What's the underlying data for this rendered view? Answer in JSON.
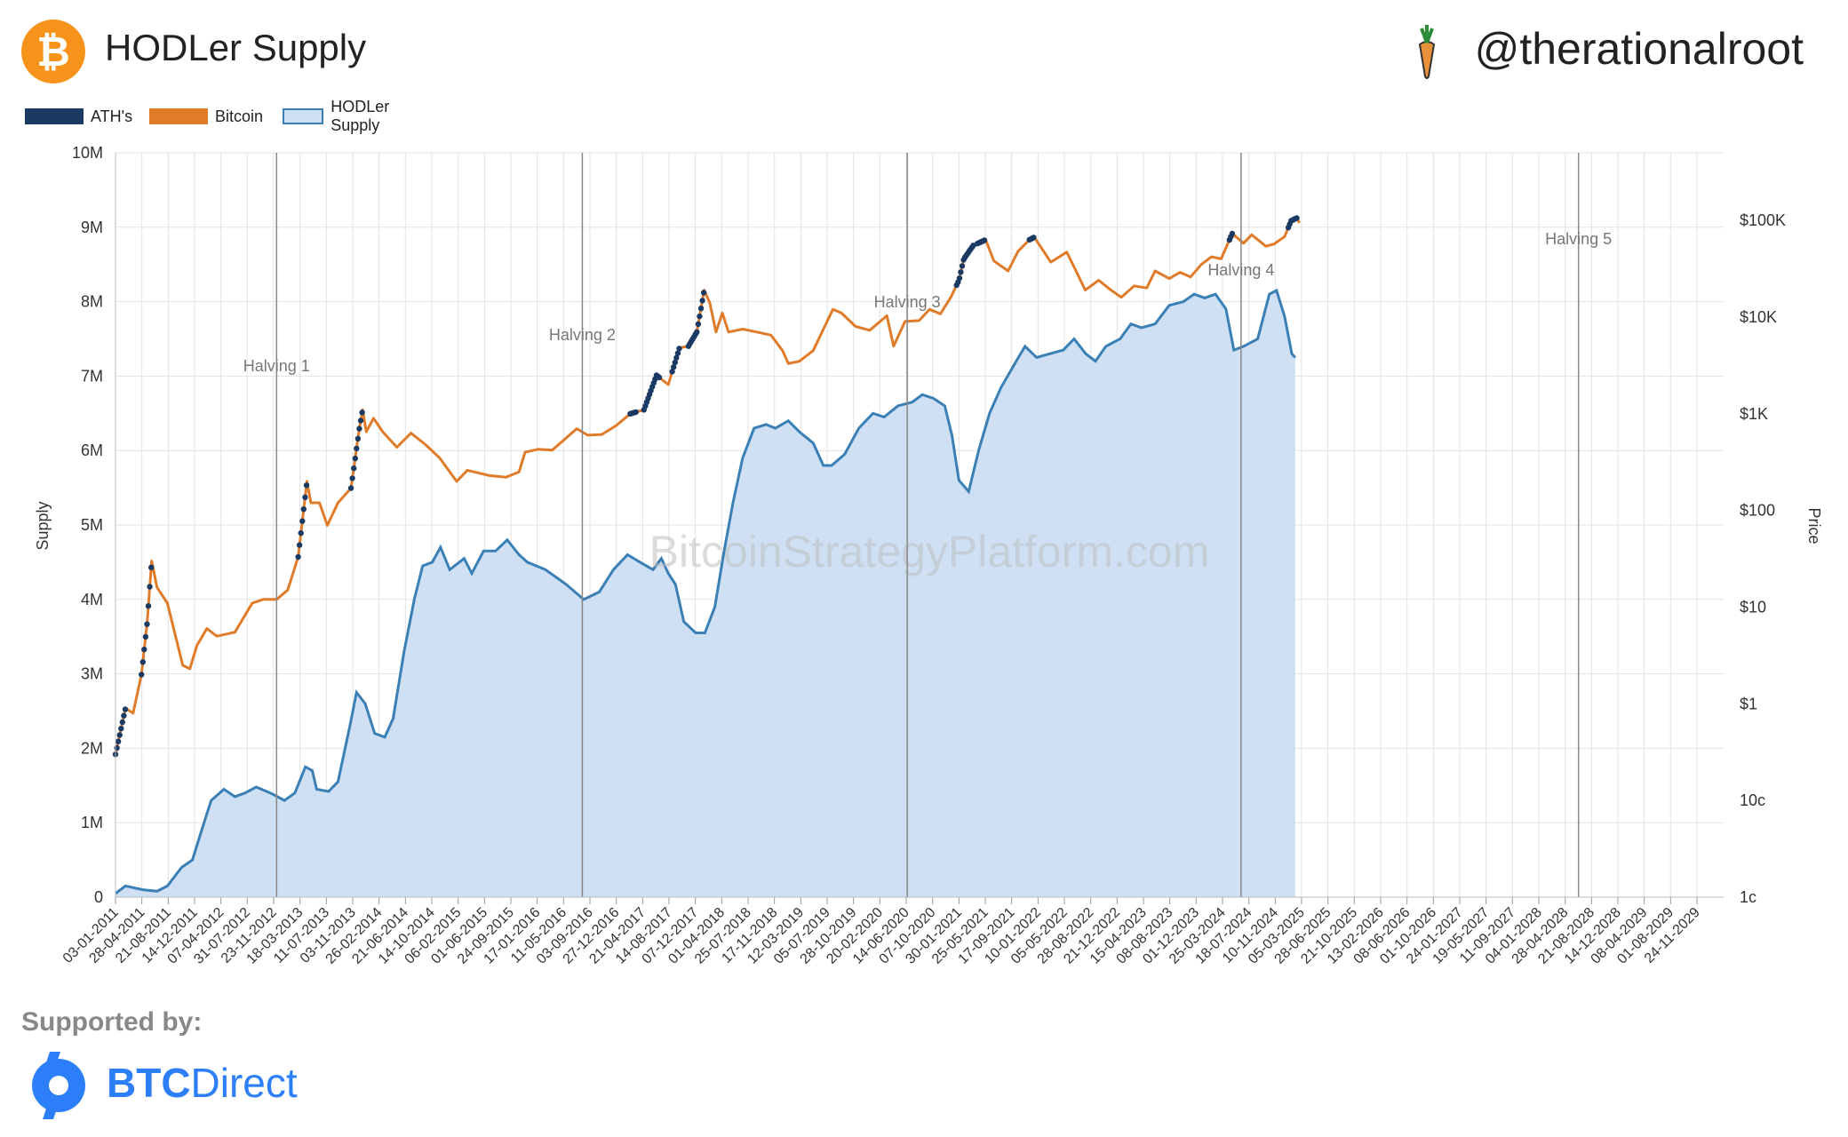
{
  "header": {
    "title": "HODLer Supply",
    "handle": "@therationalroot",
    "logo_icon": "bitcoin-icon",
    "handle_icon": "carrot-icon"
  },
  "footer": {
    "supported_label": "Supported by:",
    "sponsor_brand": "BTC",
    "sponsor_rest": "Direct",
    "sponsor_icon": "btcdirect-icon"
  },
  "colors": {
    "ath": "#1b3a63",
    "bitcoin": "#e07b2a",
    "hodler_line": "#3a7fb5",
    "hodler_fill": "#cfe0f4",
    "grid": "#e3e3e3",
    "halving_line": "#888888"
  },
  "chart_data": {
    "type": "area",
    "title": "HODLer Supply",
    "watermark": "BitcoinStrategyPlatform.com",
    "ylabel": "Supply",
    "y2label": "Price",
    "ylim": [
      0,
      10000000
    ],
    "y2_scale": "log",
    "y2lim": [
      0.01,
      500000
    ],
    "xlim": [
      "2011-01-03",
      "2030-01-01"
    ],
    "grid": true,
    "legend": [
      "ATH's",
      "Bitcoin",
      "HODLer Supply"
    ],
    "legend_position": "top-left",
    "y_ticks": [
      "0",
      "1M",
      "2M",
      "3M",
      "4M",
      "5M",
      "6M",
      "7M",
      "8M",
      "9M",
      "10M"
    ],
    "y2_ticks": [
      {
        "label": "1c",
        "value": 0.01
      },
      {
        "label": "10c",
        "value": 0.1
      },
      {
        "label": "$1",
        "value": 1
      },
      {
        "label": "$10",
        "value": 10
      },
      {
        "label": "$100",
        "value": 100
      },
      {
        "label": "$1K",
        "value": 1000
      },
      {
        "label": "$10K",
        "value": 10000
      },
      {
        "label": "$100K",
        "value": 100000
      }
    ],
    "x_ticks": [
      "03-01-2011",
      "28-04-2011",
      "21-08-2011",
      "14-12-2011",
      "07-04-2012",
      "31-07-2012",
      "23-11-2012",
      "18-03-2013",
      "11-07-2013",
      "03-11-2013",
      "26-02-2014",
      "21-06-2014",
      "14-10-2014",
      "06-02-2015",
      "01-06-2015",
      "24-09-2015",
      "17-01-2016",
      "11-05-2016",
      "03-09-2016",
      "27-12-2016",
      "21-04-2017",
      "14-08-2017",
      "07-12-2017",
      "01-04-2018",
      "25-07-2018",
      "17-11-2018",
      "12-03-2019",
      "05-07-2019",
      "28-10-2019",
      "20-02-2020",
      "14-06-2020",
      "07-10-2020",
      "30-01-2021",
      "25-05-2021",
      "17-09-2021",
      "10-01-2022",
      "05-05-2022",
      "28-08-2022",
      "21-12-2022",
      "15-04-2023",
      "08-08-2023",
      "01-12-2023",
      "25-03-2024",
      "18-07-2024",
      "10-11-2024",
      "05-03-2025",
      "28-06-2025",
      "21-10-2025",
      "13-02-2026",
      "08-06-2026",
      "01-10-2026",
      "24-01-2027",
      "19-05-2027",
      "11-09-2027",
      "04-01-2028",
      "28-04-2028",
      "21-08-2028",
      "14-12-2028",
      "08-04-2029",
      "01-08-2029",
      "24-11-2029"
    ],
    "halvings": [
      {
        "label": "Halving 1",
        "date": "2012-11-28"
      },
      {
        "label": "Halving 2",
        "date": "2016-07-09"
      },
      {
        "label": "Halving 3",
        "date": "2020-05-11"
      },
      {
        "label": "Halving 4",
        "date": "2024-04-20"
      },
      {
        "label": "Halving 5",
        "date": "2028-04-15"
      }
    ],
    "series": [
      {
        "name": "HODLer Supply",
        "kind": "area",
        "axis": "left",
        "points": [
          [
            "2011-01-03",
            50000
          ],
          [
            "2011-02-15",
            150000
          ],
          [
            "2011-05-01",
            100000
          ],
          [
            "2011-07-01",
            80000
          ],
          [
            "2011-08-15",
            150000
          ],
          [
            "2011-10-15",
            400000
          ],
          [
            "2011-12-01",
            500000
          ],
          [
            "2012-01-10",
            900000
          ],
          [
            "2012-02-20",
            1300000
          ],
          [
            "2012-04-15",
            1450000
          ],
          [
            "2012-06-01",
            1350000
          ],
          [
            "2012-07-15",
            1400000
          ],
          [
            "2012-09-01",
            1480000
          ],
          [
            "2012-11-01",
            1400000
          ],
          [
            "2013-01-01",
            1300000
          ],
          [
            "2013-02-15",
            1400000
          ],
          [
            "2013-04-01",
            1750000
          ],
          [
            "2013-05-01",
            1700000
          ],
          [
            "2013-05-20",
            1450000
          ],
          [
            "2013-07-10",
            1420000
          ],
          [
            "2013-08-20",
            1550000
          ],
          [
            "2013-10-10",
            2300000
          ],
          [
            "2013-11-08",
            2750000
          ],
          [
            "2013-12-15",
            2600000
          ],
          [
            "2014-01-25",
            2200000
          ],
          [
            "2014-03-10",
            2150000
          ],
          [
            "2014-04-15",
            2400000
          ],
          [
            "2014-06-01",
            3300000
          ],
          [
            "2014-07-15",
            4000000
          ],
          [
            "2014-08-20",
            4450000
          ],
          [
            "2014-10-01",
            4500000
          ],
          [
            "2014-11-05",
            4700000
          ],
          [
            "2014-12-15",
            4400000
          ],
          [
            "2015-02-15",
            4550000
          ],
          [
            "2015-03-20",
            4350000
          ],
          [
            "2015-05-10",
            4650000
          ],
          [
            "2015-07-01",
            4650000
          ],
          [
            "2015-08-20",
            4800000
          ],
          [
            "2015-10-10",
            4600000
          ],
          [
            "2015-11-15",
            4500000
          ],
          [
            "2016-02-01",
            4400000
          ],
          [
            "2016-05-01",
            4200000
          ],
          [
            "2016-07-15",
            4000000
          ],
          [
            "2016-09-20",
            4100000
          ],
          [
            "2016-11-20",
            4400000
          ],
          [
            "2017-01-20",
            4600000
          ],
          [
            "2017-03-15",
            4500000
          ],
          [
            "2017-05-10",
            4400000
          ],
          [
            "2017-06-15",
            4550000
          ],
          [
            "2017-07-15",
            4350000
          ],
          [
            "2017-08-15",
            4200000
          ],
          [
            "2017-09-20",
            3700000
          ],
          [
            "2017-11-10",
            3550000
          ],
          [
            "2017-12-20",
            3550000
          ],
          [
            "2018-02-01",
            3900000
          ],
          [
            "2018-03-10",
            4600000
          ],
          [
            "2018-04-20",
            5300000
          ],
          [
            "2018-06-01",
            5900000
          ],
          [
            "2018-07-20",
            6300000
          ],
          [
            "2018-09-10",
            6350000
          ],
          [
            "2018-10-20",
            6300000
          ],
          [
            "2018-12-15",
            6400000
          ],
          [
            "2019-02-01",
            6250000
          ],
          [
            "2019-04-01",
            6100000
          ],
          [
            "2019-05-15",
            5800000
          ],
          [
            "2019-06-20",
            5800000
          ],
          [
            "2019-08-15",
            5950000
          ],
          [
            "2019-10-15",
            6300000
          ],
          [
            "2019-12-15",
            6500000
          ],
          [
            "2020-02-01",
            6450000
          ],
          [
            "2020-04-01",
            6600000
          ],
          [
            "2020-06-01",
            6650000
          ],
          [
            "2020-07-15",
            6750000
          ],
          [
            "2020-09-01",
            6700000
          ],
          [
            "2020-10-20",
            6600000
          ],
          [
            "2020-11-20",
            6200000
          ],
          [
            "2020-12-20",
            5600000
          ],
          [
            "2021-01-31",
            5450000
          ],
          [
            "2021-03-15",
            6000000
          ],
          [
            "2021-05-01",
            6500000
          ],
          [
            "2021-06-20",
            6850000
          ],
          [
            "2021-08-15",
            7150000
          ],
          [
            "2021-10-01",
            7400000
          ],
          [
            "2021-11-20",
            7250000
          ],
          [
            "2022-01-15",
            7300000
          ],
          [
            "2022-03-15",
            7350000
          ],
          [
            "2022-05-01",
            7500000
          ],
          [
            "2022-06-20",
            7300000
          ],
          [
            "2022-08-01",
            7200000
          ],
          [
            "2022-09-15",
            7400000
          ],
          [
            "2022-11-15",
            7500000
          ],
          [
            "2023-01-01",
            7700000
          ],
          [
            "2023-02-15",
            7650000
          ],
          [
            "2023-04-15",
            7700000
          ],
          [
            "2023-06-15",
            7950000
          ],
          [
            "2023-08-15",
            8000000
          ],
          [
            "2023-10-01",
            8100000
          ],
          [
            "2023-11-15",
            8050000
          ],
          [
            "2024-01-01",
            8100000
          ],
          [
            "2024-02-15",
            7900000
          ],
          [
            "2024-03-20",
            7350000
          ],
          [
            "2024-05-01",
            7400000
          ],
          [
            "2024-07-01",
            7500000
          ],
          [
            "2024-08-20",
            8100000
          ],
          [
            "2024-09-20",
            8150000
          ],
          [
            "2024-10-25",
            7800000
          ],
          [
            "2024-11-25",
            7300000
          ],
          [
            "2024-12-10",
            7250000
          ]
        ]
      },
      {
        "name": "Bitcoin",
        "kind": "line",
        "axis": "right",
        "points": [
          [
            "2011-01-03",
            0.3
          ],
          [
            "2011-02-15",
            0.9
          ],
          [
            "2011-03-20",
            0.8
          ],
          [
            "2011-04-25",
            2.0
          ],
          [
            "2011-05-20",
            7
          ],
          [
            "2011-06-08",
            30
          ],
          [
            "2011-07-01",
            16
          ],
          [
            "2011-08-15",
            11
          ],
          [
            "2011-10-20",
            2.5
          ],
          [
            "2011-11-20",
            2.3
          ],
          [
            "2011-12-20",
            4
          ],
          [
            "2012-02-01",
            6
          ],
          [
            "2012-03-15",
            5
          ],
          [
            "2012-06-01",
            5.5
          ],
          [
            "2012-08-15",
            11
          ],
          [
            "2012-10-01",
            12
          ],
          [
            "2012-11-28",
            12
          ],
          [
            "2013-01-15",
            15
          ],
          [
            "2013-03-01",
            33
          ],
          [
            "2013-04-08",
            200
          ],
          [
            "2013-04-25",
            120
          ],
          [
            "2013-06-01",
            120
          ],
          [
            "2013-07-05",
            70
          ],
          [
            "2013-08-20",
            120
          ],
          [
            "2013-10-15",
            170
          ],
          [
            "2013-11-20",
            700
          ],
          [
            "2013-12-04",
            1100
          ],
          [
            "2013-12-20",
            650
          ],
          [
            "2014-01-20",
            900
          ],
          [
            "2014-03-01",
            650
          ],
          [
            "2014-05-01",
            450
          ],
          [
            "2014-07-01",
            630
          ],
          [
            "2014-09-01",
            480
          ],
          [
            "2014-11-01",
            350
          ],
          [
            "2015-01-14",
            200
          ],
          [
            "2015-03-01",
            260
          ],
          [
            "2015-06-01",
            230
          ],
          [
            "2015-08-15",
            220
          ],
          [
            "2015-10-10",
            250
          ],
          [
            "2015-11-05",
            400
          ],
          [
            "2016-01-01",
            430
          ],
          [
            "2016-03-01",
            420
          ],
          [
            "2016-06-15",
            700
          ],
          [
            "2016-08-01",
            600
          ],
          [
            "2016-10-01",
            610
          ],
          [
            "2016-12-01",
            750
          ],
          [
            "2017-02-01",
            1000
          ],
          [
            "2017-04-01",
            1100
          ],
          [
            "2017-05-25",
            2500
          ],
          [
            "2017-07-15",
            2000
          ],
          [
            "2017-09-01",
            4800
          ],
          [
            "2017-10-10",
            5000
          ],
          [
            "2017-11-15",
            7000
          ],
          [
            "2017-12-17",
            19000
          ],
          [
            "2018-01-10",
            14000
          ],
          [
            "2018-02-06",
            7000
          ],
          [
            "2018-03-05",
            11000
          ],
          [
            "2018-04-01",
            7000
          ],
          [
            "2018-06-01",
            7500
          ],
          [
            "2018-08-01",
            7000
          ],
          [
            "2018-10-01",
            6500
          ],
          [
            "2018-11-20",
            4500
          ],
          [
            "2018-12-15",
            3300
          ],
          [
            "2019-02-01",
            3500
          ],
          [
            "2019-04-01",
            4500
          ],
          [
            "2019-06-25",
            12000
          ],
          [
            "2019-08-01",
            11000
          ],
          [
            "2019-10-01",
            8000
          ],
          [
            "2019-12-01",
            7300
          ],
          [
            "2020-02-13",
            10300
          ],
          [
            "2020-03-13",
            5000
          ],
          [
            "2020-05-01",
            9000
          ],
          [
            "2020-07-01",
            9200
          ],
          [
            "2020-08-15",
            12000
          ],
          [
            "2020-10-01",
            10800
          ],
          [
            "2020-11-15",
            16000
          ],
          [
            "2020-12-20",
            24000
          ],
          [
            "2021-01-10",
            40000
          ],
          [
            "2021-02-20",
            55000
          ],
          [
            "2021-04-14",
            63000
          ],
          [
            "2021-05-20",
            38000
          ],
          [
            "2021-07-20",
            30000
          ],
          [
            "2021-09-01",
            48000
          ],
          [
            "2021-10-20",
            63000
          ],
          [
            "2021-11-10",
            67000
          ],
          [
            "2022-01-20",
            37000
          ],
          [
            "2022-03-30",
            47000
          ],
          [
            "2022-05-12",
            29000
          ],
          [
            "2022-06-18",
            19000
          ],
          [
            "2022-08-15",
            24000
          ],
          [
            "2022-10-01",
            19500
          ],
          [
            "2022-11-20",
            16000
          ],
          [
            "2023-01-15",
            21000
          ],
          [
            "2023-03-10",
            20000
          ],
          [
            "2023-04-15",
            30000
          ],
          [
            "2023-06-15",
            25000
          ],
          [
            "2023-08-01",
            29000
          ],
          [
            "2023-09-15",
            26000
          ],
          [
            "2023-11-01",
            35000
          ],
          [
            "2023-12-15",
            42000
          ],
          [
            "2024-01-25",
            40000
          ],
          [
            "2024-03-13",
            73000
          ],
          [
            "2024-05-01",
            58000
          ],
          [
            "2024-06-05",
            71000
          ],
          [
            "2024-08-05",
            54000
          ],
          [
            "2024-09-10",
            57000
          ],
          [
            "2024-10-25",
            68000
          ],
          [
            "2024-11-22",
            99000
          ],
          [
            "2024-12-17",
            106000
          ],
          [
            "2024-12-28",
            94000
          ]
        ]
      },
      {
        "name": "ATH's",
        "kind": "markers",
        "axis": "right",
        "ranges": [
          [
            "2011-01-03",
            "2011-02-15"
          ],
          [
            "2011-04-25",
            "2011-06-08"
          ],
          [
            "2013-03-01",
            "2013-04-08"
          ],
          [
            "2013-10-15",
            "2013-12-04"
          ],
          [
            "2017-02-01",
            "2017-02-25"
          ],
          [
            "2017-04-01",
            "2017-06-10"
          ],
          [
            "2017-08-01",
            "2017-09-01"
          ],
          [
            "2017-10-10",
            "2017-12-17"
          ],
          [
            "2020-12-10",
            "2021-02-20"
          ],
          [
            "2021-03-10",
            "2021-04-14"
          ],
          [
            "2021-10-20",
            "2021-11-10"
          ],
          [
            "2024-03-01",
            "2024-03-13"
          ],
          [
            "2024-11-10",
            "2024-12-17"
          ]
        ]
      }
    ]
  }
}
